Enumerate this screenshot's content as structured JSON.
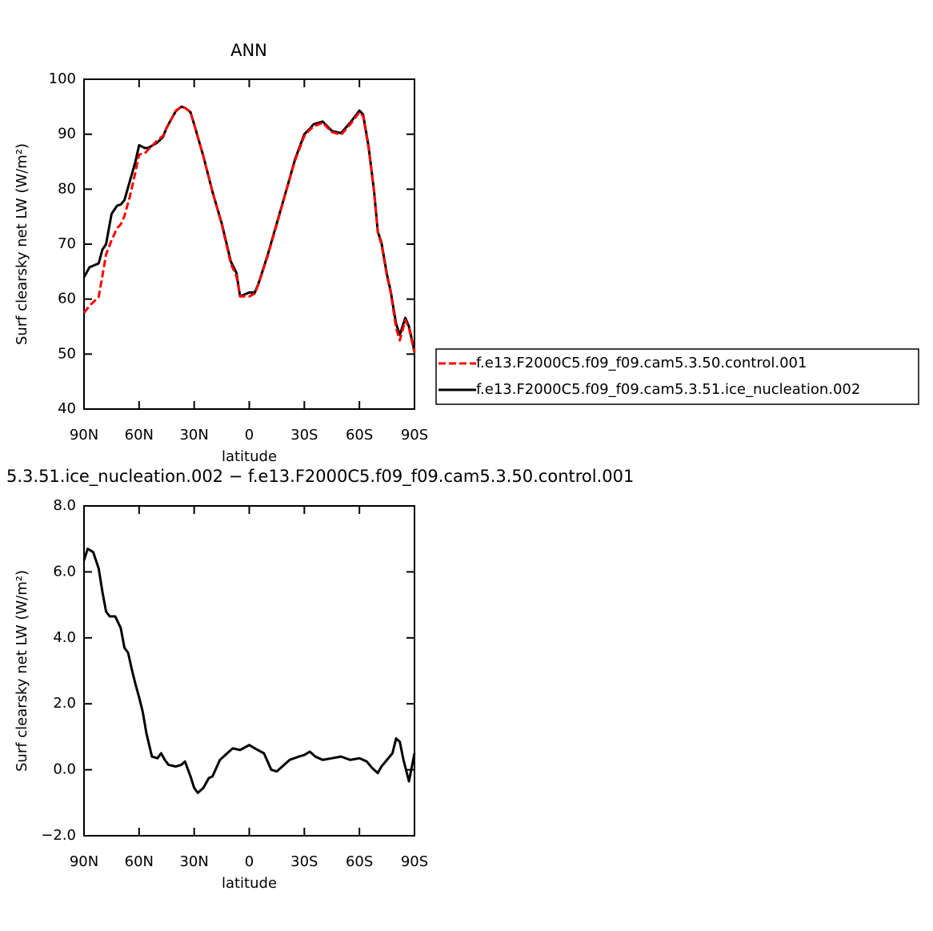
{
  "chart_data": [
    {
      "type": "line",
      "title": "ANN",
      "xlabel": "latitude",
      "ylabel": "Surf clearsky net LW (W/m²)",
      "xlim": [
        90,
        -90
      ],
      "ylim": [
        40,
        100
      ],
      "xticks": [
        {
          "value": 90,
          "label": "90N"
        },
        {
          "value": 60,
          "label": "60N"
        },
        {
          "value": 30,
          "label": "30N"
        },
        0,
        {
          "value": -30,
          "label": "30S"
        },
        {
          "value": -60,
          "label": "60S"
        },
        {
          "value": -90,
          "label": "90S"
        }
      ],
      "yticks": [
        40,
        50,
        60,
        70,
        80,
        90,
        100
      ],
      "legend": "right",
      "x": [
        90,
        87,
        82,
        80,
        78,
        75,
        72,
        70,
        68,
        65,
        62,
        60,
        57,
        55,
        50,
        47,
        45,
        40,
        37,
        35,
        32,
        30,
        25,
        20,
        15,
        10,
        7,
        5,
        0,
        -3,
        -5,
        -10,
        -15,
        -20,
        -25,
        -30,
        -33,
        -35,
        -40,
        -45,
        -50,
        -55,
        -60,
        -62,
        -65,
        -68,
        -70,
        -72,
        -75,
        -77,
        -80,
        -82,
        -85,
        -87,
        -90
      ],
      "series": [
        {
          "name": "f.e13.F2000C5.f09_f09.cam5.3.50.control.001",
          "color": "#ff0000",
          "dash": true,
          "values": [
            57.5,
            58.8,
            60.4,
            64.2,
            68.1,
            70.7,
            72.9,
            73.6,
            75.1,
            78.7,
            83.1,
            86.3,
            86.5,
            87.2,
            88.9,
            89.7,
            91.1,
            94.3,
            95.0,
            94.8,
            94.0,
            91.8,
            86.0,
            79.5,
            73.6,
            66.4,
            64.2,
            60.5,
            60.5,
            61.0,
            62.7,
            67.8,
            73.6,
            79.5,
            85.3,
            89.7,
            90.8,
            91.4,
            92.1,
            90.4,
            89.9,
            91.8,
            94.0,
            93.3,
            87.5,
            79.5,
            72.2,
            70.0,
            64.2,
            61.3,
            54.7,
            52.5,
            56.2,
            54.7,
            50.3
          ]
        },
        {
          "name": "f.e13.F2000C5.f09_f09.cam5.3.51.ice_nucleation.002",
          "color": "#000000",
          "dash": false,
          "values": [
            64,
            65.8,
            66.5,
            69,
            70,
            75.5,
            77,
            77.2,
            78,
            81.5,
            85,
            88,
            87.5,
            87.5,
            88.5,
            89.5,
            91.2,
            94.2,
            95.0,
            94.8,
            94.0,
            91.8,
            86.0,
            79.5,
            73.8,
            66.8,
            64.8,
            60.5,
            61.2,
            61.2,
            62.8,
            68.0,
            73.8,
            79.6,
            85.5,
            90.0,
            91.0,
            91.8,
            92.3,
            90.6,
            90.2,
            92.1,
            94.3,
            93.6,
            87.8,
            79.6,
            72.3,
            70.3,
            64.5,
            61.5,
            55.5,
            53.5,
            56.6,
            55,
            50.5
          ]
        }
      ]
    },
    {
      "type": "line",
      "title": "5.3.51.ice_nucleation.002 − f.e13.F2000C5.f09_f09.cam5.3.50.control.001",
      "xlabel": "latitude",
      "ylabel": "Surf clearsky net LW (W/m²)",
      "xlim": [
        90,
        -90
      ],
      "ylim": [
        -2,
        8
      ],
      "xticks": [
        {
          "value": 90,
          "label": "90N"
        },
        {
          "value": 60,
          "label": "60N"
        },
        {
          "value": 30,
          "label": "30N"
        },
        0,
        {
          "value": -30,
          "label": "30S"
        },
        {
          "value": -60,
          "label": "60S"
        },
        {
          "value": -90,
          "label": "90S"
        }
      ],
      "yticks": [
        {
          "value": -2,
          "label": "−2.0"
        },
        {
          "value": 0,
          "label": "0.0"
        },
        {
          "value": 2,
          "label": "2.0"
        },
        {
          "value": 4,
          "label": "4.0"
        },
        {
          "value": 6,
          "label": "6.0"
        },
        {
          "value": 8,
          "label": "8.0"
        }
      ],
      "x": [
        90,
        88,
        85,
        82,
        80,
        78,
        76,
        73,
        70,
        68,
        66,
        64,
        62,
        60,
        58,
        56,
        53,
        50,
        48,
        46,
        44,
        40,
        37,
        35,
        32,
        30,
        28,
        25,
        22,
        20,
        16,
        12,
        9,
        5,
        0,
        -3,
        -8,
        -12,
        -15,
        -18,
        -22,
        -27,
        -30,
        -33,
        -36,
        -40,
        -45,
        -50,
        -55,
        -60,
        -64,
        -67,
        -70,
        -72,
        -75,
        -78,
        -80,
        -82,
        -84,
        -87,
        -90
      ],
      "values": [
        6.35,
        6.7,
        6.6,
        6.1,
        5.4,
        4.8,
        4.65,
        4.65,
        4.3,
        3.7,
        3.55,
        3.05,
        2.6,
        2.2,
        1.75,
        1.1,
        0.4,
        0.35,
        0.5,
        0.3,
        0.15,
        0.1,
        0.15,
        0.25,
        -0.2,
        -0.55,
        -0.7,
        -0.55,
        -0.25,
        -0.2,
        0.3,
        0.5,
        0.65,
        0.6,
        0.75,
        0.65,
        0.5,
        0,
        -0.05,
        0.1,
        0.3,
        0.4,
        0.45,
        0.55,
        0.4,
        0.3,
        0.35,
        0.4,
        0.3,
        0.35,
        0.25,
        0.05,
        -0.1,
        0.1,
        0.3,
        0.5,
        0.95,
        0.85,
        0.3,
        -0.35,
        0.5
      ],
      "color": "#000000"
    }
  ]
}
